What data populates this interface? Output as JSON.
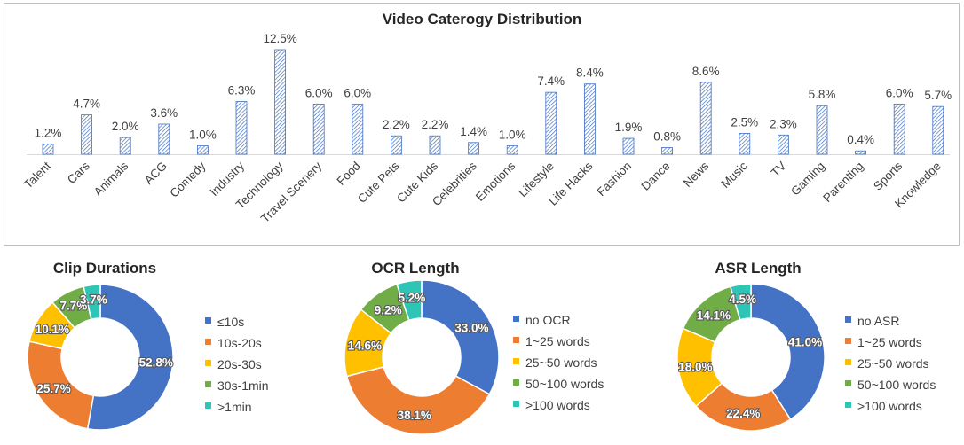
{
  "chart_data": [
    {
      "type": "bar",
      "title": "Video Caterogy Distribution",
      "categories": [
        "Talent",
        "Cars",
        "Animals",
        "ACG",
        "Comedy",
        "Industry",
        "Technology",
        "Travel Scenery",
        "Food",
        "Cute Pets",
        "Cute Kids",
        "Celebrities",
        "Emotions",
        "Lifestyle",
        "Life Hacks",
        "Fashion",
        "Dance",
        "News",
        "Music",
        "TV",
        "Gaming",
        "Parenting",
        "Sports",
        "Knowledge"
      ],
      "values": [
        1.2,
        4.7,
        2.0,
        3.6,
        1.0,
        6.3,
        12.5,
        6.0,
        6.0,
        2.2,
        2.2,
        1.4,
        1.0,
        7.4,
        8.4,
        1.9,
        0.8,
        8.6,
        2.5,
        2.3,
        5.8,
        0.4,
        6.0,
        5.7
      ],
      "value_labels": [
        "1.2%",
        "4.7%",
        "2.0%",
        "3.6%",
        "1.0%",
        "6.3%",
        "12.5%",
        "6.0%",
        "6.0%",
        "2.2%",
        "2.2%",
        "1.4%",
        "1.0%",
        "7.4%",
        "8.4%",
        "1.9%",
        "0.8%",
        "8.6%",
        "2.5%",
        "2.3%",
        "5.8%",
        "0.4%",
        "6.0%",
        "5.7%"
      ],
      "unit": "%",
      "color": "#4472c4",
      "grid": false,
      "xlabel": "",
      "ylabel": ""
    },
    {
      "type": "pie",
      "title": "Clip Durations",
      "labels": [
        "≤10s",
        "10s-20s",
        "20s-30s",
        "30s-1min",
        ">1min"
      ],
      "values": [
        52.8,
        25.7,
        10.1,
        7.7,
        3.7
      ],
      "value_labels": [
        "52.8%",
        "25.7%",
        "10.1%",
        "7.7%",
        "3.7%"
      ],
      "colors": [
        "#4472c4",
        "#ed7d31",
        "#ffc000",
        "#70ad47",
        "#2ec4b6"
      ],
      "legend": "right"
    },
    {
      "type": "pie",
      "title": "OCR Length",
      "labels": [
        "no OCR",
        "1~25 words",
        "25~50 words",
        "50~100 words",
        ">100 words"
      ],
      "values": [
        33.0,
        38.1,
        14.6,
        9.2,
        5.2
      ],
      "value_labels": [
        "33.0%",
        "38.1%",
        "14.6%",
        "9.2%",
        "5.2%"
      ],
      "colors": [
        "#4472c4",
        "#ed7d31",
        "#ffc000",
        "#70ad47",
        "#2ec4b6"
      ],
      "legend": "right"
    },
    {
      "type": "pie",
      "title": "ASR Length",
      "labels": [
        "no ASR",
        "1~25 words",
        "25~50 words",
        "50~100 words",
        ">100 words"
      ],
      "values": [
        41.0,
        22.4,
        18.0,
        14.1,
        4.5
      ],
      "value_labels": [
        "41.0%",
        "22.4%",
        "18.0%",
        "14.1%",
        "4.5%"
      ],
      "colors": [
        "#4472c4",
        "#ed7d31",
        "#ffc000",
        "#70ad47",
        "#2ec4b6"
      ],
      "legend": "right"
    }
  ]
}
